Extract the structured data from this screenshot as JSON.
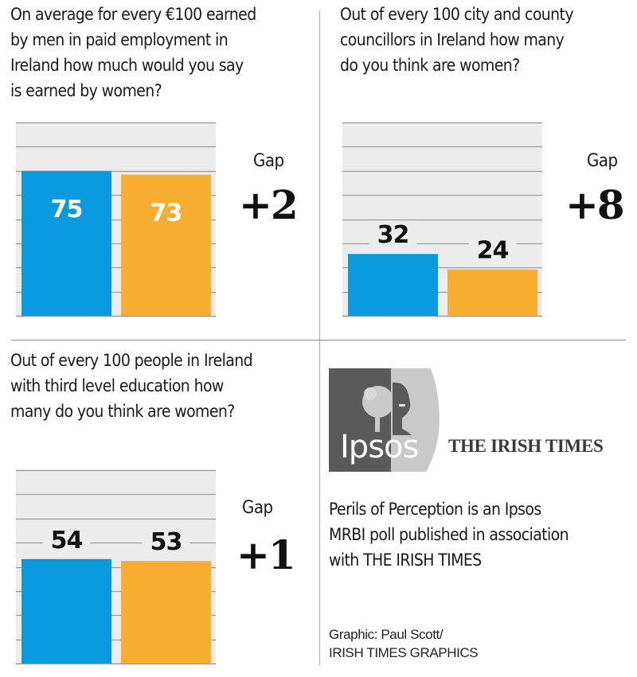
{
  "colors": {
    "men": "#0a9ae0",
    "women": "#f6ad30",
    "plot_bg": "#ececec",
    "grid": "#9a9a9a"
  },
  "chart_data": [
    {
      "type": "bar",
      "title": "On average for every €100 earned by men in paid employment in Ireland how much would you say is earned by women?",
      "title_lines": [
        "On average for every €100 earned",
        "by men in paid employment in",
        "Ireland how much would you say",
        "is earned by women?"
      ],
      "categories": [
        "bar-1",
        "bar-2"
      ],
      "values": [
        75,
        73
      ],
      "labels": [
        "75",
        "73"
      ],
      "label_position": "inside",
      "ylim": [
        0,
        100
      ],
      "grid": true,
      "gap_label": "Gap",
      "gap_value": "+2"
    },
    {
      "type": "bar",
      "title": "Out of every 100 city and county councillors in Ireland how many do you think are women?",
      "title_lines": [
        "Out of every 100 city and county",
        "councillors in Ireland how many",
        "do you think are women?"
      ],
      "categories": [
        "bar-1",
        "bar-2"
      ],
      "values": [
        32,
        24
      ],
      "labels": [
        "32",
        "24"
      ],
      "label_position": "above",
      "ylim": [
        0,
        100
      ],
      "grid": true,
      "gap_label": "Gap",
      "gap_value": "+8"
    },
    {
      "type": "bar",
      "title": "Out of every 100 people in Ireland with third level education how many do you think are women?",
      "title_lines": [
        "Out of every 100 people in Ireland",
        "with third level education how",
        "many do you think are women?"
      ],
      "categories": [
        "bar-1",
        "bar-2"
      ],
      "values": [
        54,
        53
      ],
      "labels": [
        "54",
        "53"
      ],
      "label_position": "above",
      "ylim": [
        0,
        100
      ],
      "grid": true,
      "gap_label": "Gap",
      "gap_value": "+1"
    }
  ],
  "logos": {
    "ipsos": "Ipsos",
    "irish_times": "THE IRISH TIMES"
  },
  "about_lines": [
    "Perils of Perception is an Ipsos",
    "MRBI poll published in association",
    "with THE IRISH TIMES"
  ],
  "credit_lines": [
    "Graphic: Paul Scott/",
    "IRISH TIMES GRAPHICS"
  ]
}
